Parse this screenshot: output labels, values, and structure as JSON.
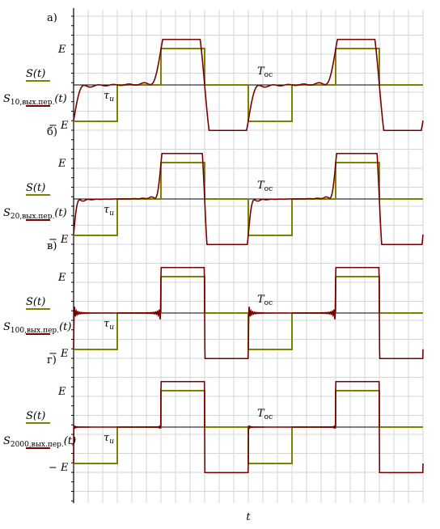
{
  "chart_data": {
    "type": "line",
    "xlabel": "t",
    "x_range": [
      0,
      1
    ],
    "y_range": [
      -2,
      2
    ],
    "grid": true,
    "y_tick_labels": [
      "E",
      "− E"
    ],
    "legend": "left",
    "colors": {
      "reference": "#808000",
      "response": "#7a0000",
      "grid": "#d4d4d4"
    },
    "reference_series": {
      "name": "S(t)",
      "x": [
        0,
        0.125,
        0.125,
        0.25,
        0.25,
        0.375,
        0.375,
        0.5,
        0.5,
        0.625,
        0.625,
        0.75,
        0.75,
        0.875,
        0.875,
        1.0
      ],
      "y": [
        -1,
        -1,
        0,
        0,
        1,
        1,
        0,
        0,
        -1,
        -1,
        0,
        0,
        1,
        1,
        0,
        0
      ]
    },
    "annotations": {
      "tau": "τ",
      "tau_sub": "u",
      "period": "T",
      "period_sub": "ос"
    },
    "panels": [
      {
        "letter": "а)",
        "series_name": "S",
        "series_sub": "10,вых.пер.",
        "series_arg": "(t)",
        "harmonics": 10
      },
      {
        "letter": "б)",
        "series_name": "S",
        "series_sub": "20,вых.пер.",
        "series_arg": "(t)",
        "harmonics": 20
      },
      {
        "letter": "в)",
        "series_name": "S",
        "series_sub": "100,вых.пер.",
        "series_arg": "(t)",
        "harmonics": 100
      },
      {
        "letter": "г)",
        "series_name": "S",
        "series_sub": "2000,вых.пер.",
        "series_arg": "(t)",
        "harmonics": 2000
      }
    ]
  }
}
